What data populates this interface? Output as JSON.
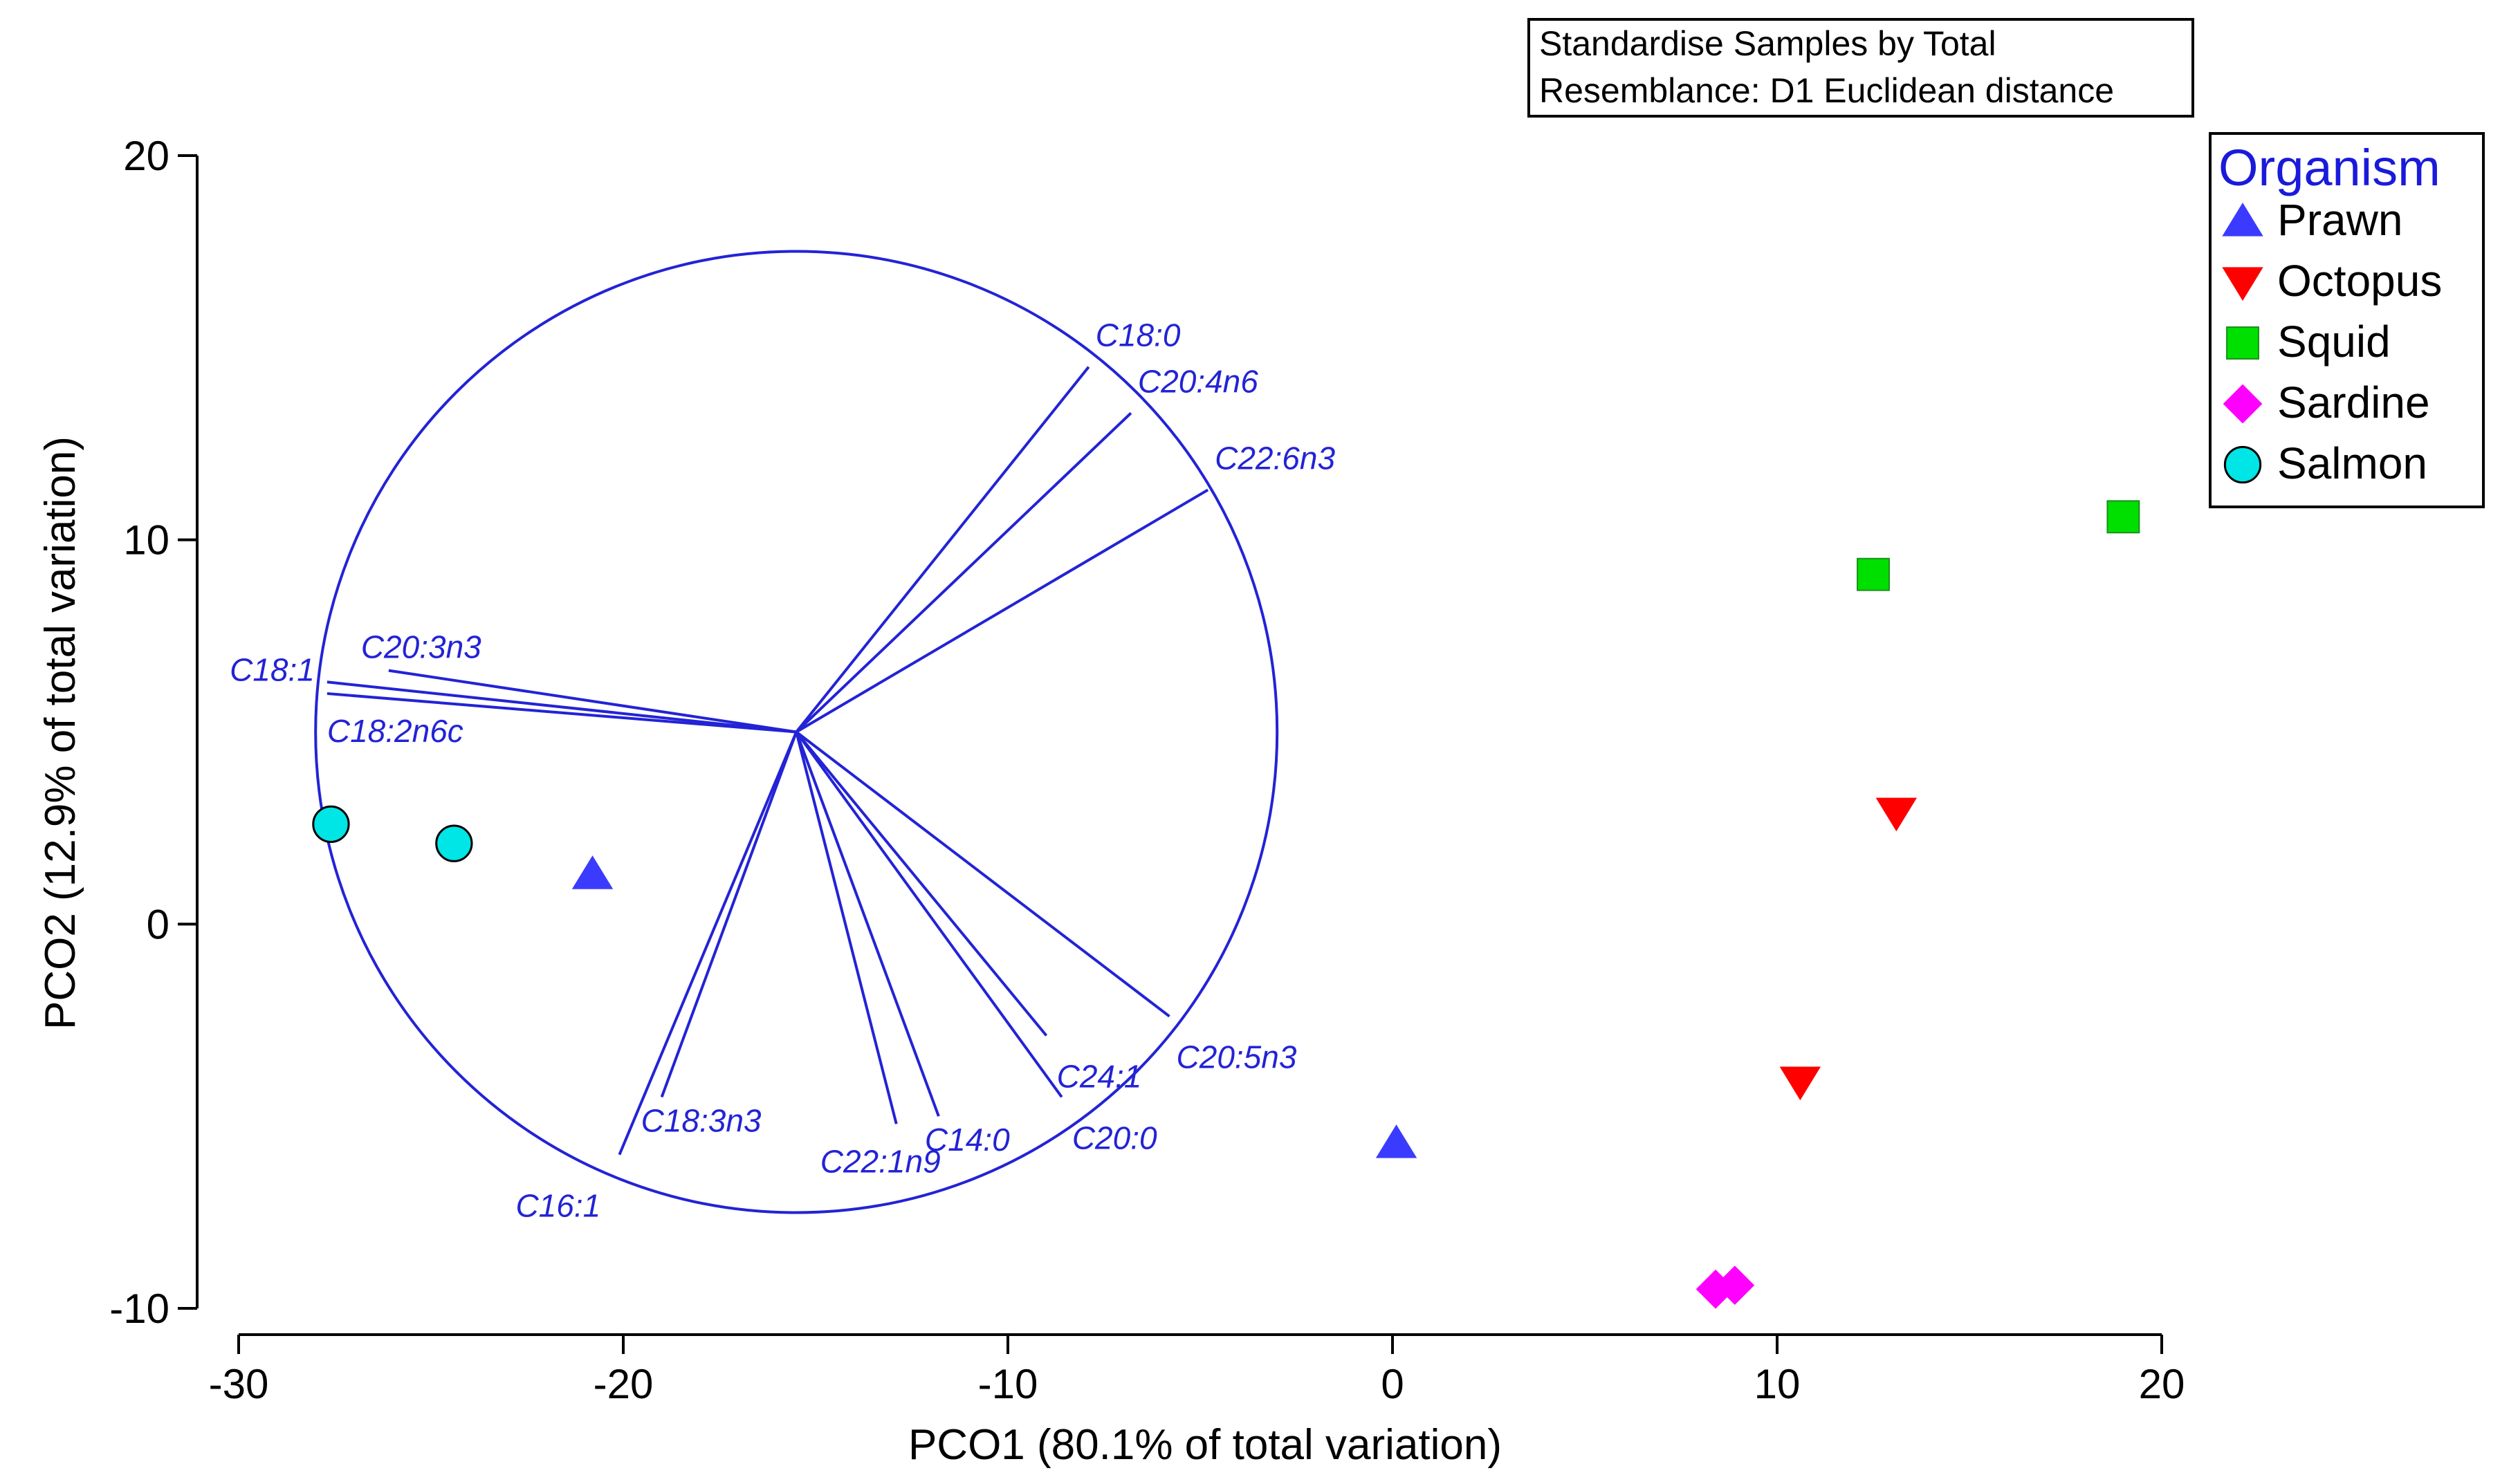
{
  "chart_data": {
    "type": "scatter",
    "subtype": "PCO biplot",
    "info_box": [
      "Standardise Samples by Total",
      "Resemblance: D1 Euclidean distance"
    ],
    "xlabel": "PCO1 (80.1% of total variation)",
    "ylabel": "PCO2 (12.9% of total variation)",
    "xlim": [
      -30,
      20
    ],
    "ylim": [
      -10,
      20
    ],
    "x_ticks": [
      -30,
      -20,
      -10,
      0,
      10,
      20
    ],
    "y_ticks": [
      -10,
      0,
      10,
      20
    ],
    "legend_title": "Organism",
    "legend_position": "top-right",
    "series": [
      {
        "name": "Prawn",
        "marker": "triangle-up",
        "color": "#3b3bff",
        "points": [
          [
            -20.8,
            1.3
          ],
          [
            0.1,
            -5.7
          ]
        ]
      },
      {
        "name": "Octopus",
        "marker": "triangle-down",
        "color": "#ff0000",
        "points": [
          [
            13.1,
            2.9
          ],
          [
            10.6,
            -4.1
          ]
        ]
      },
      {
        "name": "Squid",
        "marker": "square",
        "color": "#00e000",
        "points": [
          [
            12.5,
            9.1
          ],
          [
            19.0,
            10.6
          ]
        ]
      },
      {
        "name": "Sardine",
        "marker": "diamond",
        "color": "#ff00ff",
        "points": [
          [
            8.4,
            -9.5
          ],
          [
            8.9,
            -9.4
          ]
        ]
      },
      {
        "name": "Salmon",
        "marker": "circle",
        "color": "#00e5e5",
        "points": [
          [
            -27.6,
            2.6
          ],
          [
            -24.4,
            2.1
          ]
        ]
      }
    ],
    "vector_color": "#2323d6",
    "correlation_circle": {
      "center": [
        -15.5,
        5.0
      ],
      "radius": 12.5
    },
    "vectors": [
      {
        "label": "C18:0",
        "end": [
          -7.9,
          14.5
        ]
      },
      {
        "label": "C20:4n6",
        "end": [
          -6.8,
          13.3
        ]
      },
      {
        "label": "C22:6n3",
        "end": [
          -4.8,
          11.3
        ]
      },
      {
        "label": "C18:1",
        "end": [
          -27.7,
          6.3
        ]
      },
      {
        "label": "C20:3n3",
        "end": [
          -26.1,
          6.6
        ]
      },
      {
        "label": "C18:2n6c",
        "end": [
          -27.7,
          6.0
        ]
      },
      {
        "label": "C16:1",
        "end": [
          -20.1,
          -6.0
        ]
      },
      {
        "label": "C18:3n3",
        "end": [
          -19.0,
          -4.5
        ]
      },
      {
        "label": "C22:1n9",
        "end": [
          -12.9,
          -5.2
        ]
      },
      {
        "label": "C14:0",
        "end": [
          -11.8,
          -5.0
        ]
      },
      {
        "label": "C20:0",
        "end": [
          -8.6,
          -4.5
        ]
      },
      {
        "label": "C24:1",
        "end": [
          -9.0,
          -2.9
        ]
      },
      {
        "label": "C20:5n3",
        "end": [
          -5.8,
          -2.4
        ]
      }
    ]
  }
}
